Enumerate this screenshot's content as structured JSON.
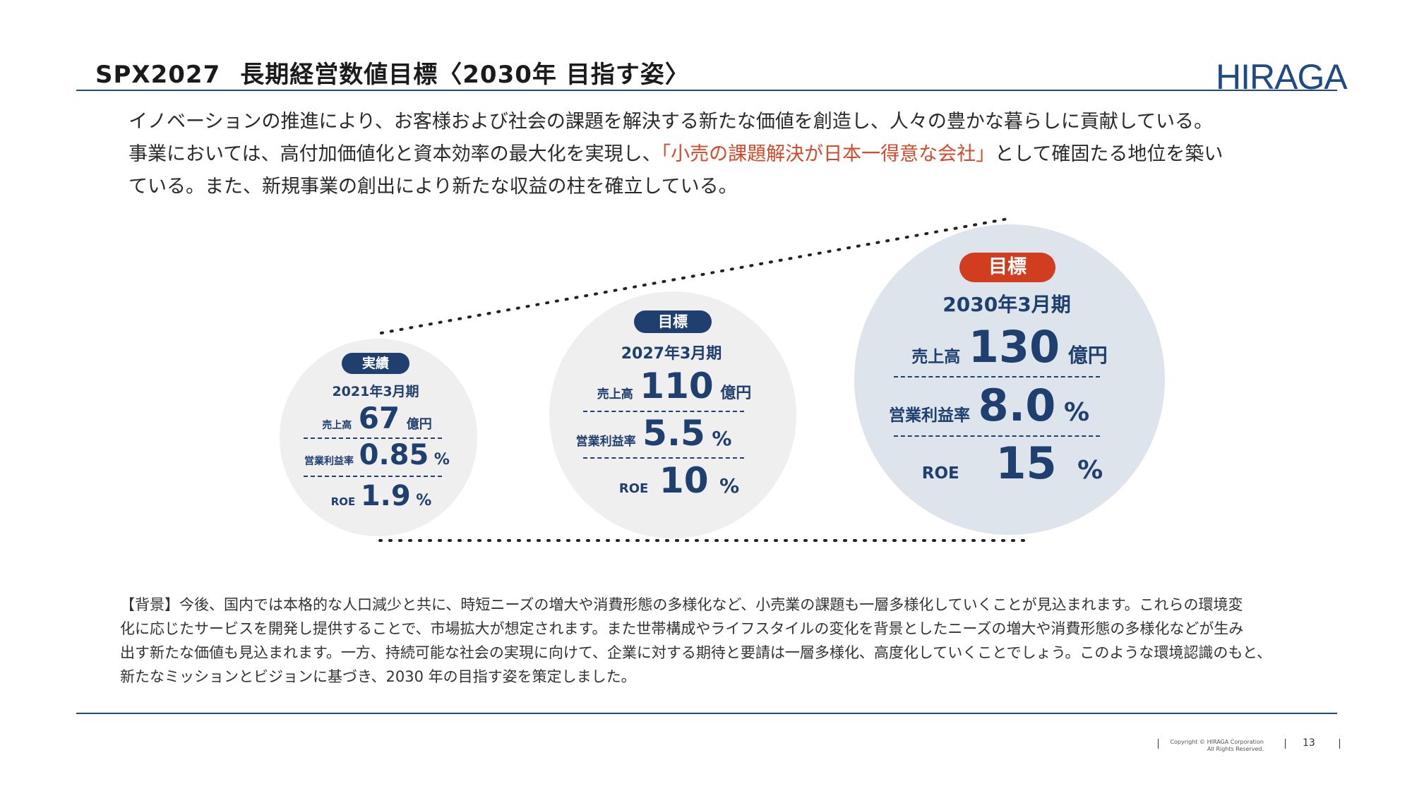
{
  "header": {
    "title_main": "SPX2027",
    "title_sub": "長期経営数値目標〈2030年 目指す姿〉",
    "logo_text": "HIRAGA"
  },
  "intro": {
    "line1": "イノベーションの推進により、お客様および社会の課題を解決する新たな価値を創造し、人々の豊かな暮らしに貢献している。",
    "line2_pre": "事業においては、高付加価値化と資本効率の最大化を実現し、",
    "line2_highlight": "「小売の課題解決が日本一得意な会社」",
    "line2_post": "として確固たる地位を築い",
    "line3": "ている。また、新規事業の創出により新たな収益の柱を確立している。"
  },
  "circles": [
    {
      "badge": "実績",
      "period": "2021年3月期",
      "sales_label": "売上高",
      "sales_value": "67",
      "sales_unit": "億円",
      "margin_label": "営業利益率",
      "margin_value": "0.85",
      "margin_unit": "%",
      "roe_label": "ROE",
      "roe_value": "1.9",
      "roe_unit": "%"
    },
    {
      "badge": "目標",
      "period": "2027年3月期",
      "sales_label": "売上高",
      "sales_value": "110",
      "sales_unit": "億円",
      "margin_label": "営業利益率",
      "margin_value": "5.5",
      "margin_unit": "%",
      "roe_label": "ROE",
      "roe_value": "10",
      "roe_unit": "%"
    },
    {
      "badge": "目標",
      "period": "2030年3月期",
      "sales_label": "売上高",
      "sales_value": "130",
      "sales_unit": "億円",
      "margin_label": "営業利益率",
      "margin_value": "8.0",
      "margin_unit": "%",
      "roe_label": "ROE",
      "roe_value": "15",
      "roe_unit": "%"
    }
  ],
  "background": {
    "line1": "【背景】今後、国内では本格的な人口減少と共に、時短ニーズの増大や消費形態の多様化など、小売業の課題も一層多様化していくことが見込まれます。これらの環境変",
    "line2": "化に応じたサービスを開発し提供することで、市場拡大が想定されます。また世帯構成やライフスタイルの変化を背景としたニーズの増大や消費形態の多様化などが生み",
    "line3": "出す新たな価値も見込まれます。一方、持続可能な社会の実現に向けて、企業に対する期待と要請は一層多様化、高度化していくことでしょう。このような環境認識のもと、",
    "line4": "新たなミッションとビジョンに基づき、2030 年の目指す姿を策定しました。"
  },
  "footer": {
    "copyright_1": "Copyright © HIRAGA Corporation",
    "copyright_2": "All Rights Reserved.",
    "page_number": "13"
  },
  "colors": {
    "navy": "#1f3f6f",
    "red": "#d23d1f",
    "rule": "#1f4b84"
  }
}
